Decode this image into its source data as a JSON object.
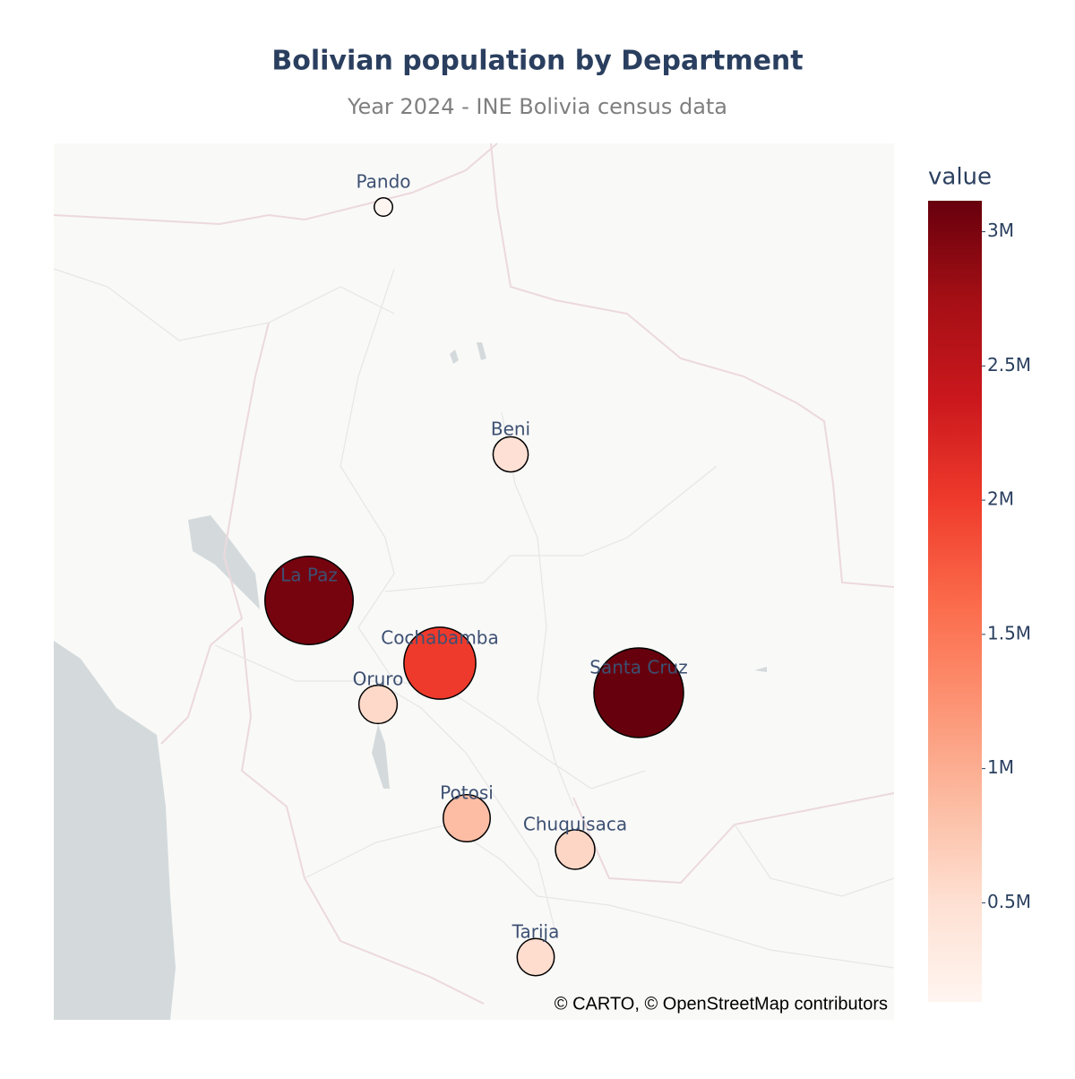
{
  "chart_data": {
    "type": "scatter_map",
    "title": "Bolivian population by Department",
    "subtitle": "Year 2024 - INE Bolivia census data",
    "categories": [
      "Pando",
      "Beni",
      "La Paz",
      "Cochabamba",
      "Oruro",
      "Potosi",
      "Chuquisaca",
      "Santa Cruz",
      "Tarija"
    ],
    "values": [
      130761,
      477441,
      3022566,
      2005373,
      570194,
      856419,
      600132,
      3115386,
      534690
    ],
    "colorbar_title": "value",
    "clim": [
      130761,
      3115386
    ],
    "cticks": [
      {
        "value": 500000,
        "label": "0.5M"
      },
      {
        "value": 1000000,
        "label": "1M"
      },
      {
        "value": 1500000,
        "label": "1.5M"
      },
      {
        "value": 2000000,
        "label": "2M"
      },
      {
        "value": 2500000,
        "label": "2.5M"
      },
      {
        "value": 3000000,
        "label": "3M"
      }
    ],
    "colorscale": [
      "#fff5f0",
      "#fee0d2",
      "#fcbba1",
      "#fc9272",
      "#fb6a4a",
      "#ef3b2c",
      "#cb181d",
      "#a50f15",
      "#67000d"
    ],
    "attribution": "© CARTO, © OpenStreetMap contributors"
  }
}
